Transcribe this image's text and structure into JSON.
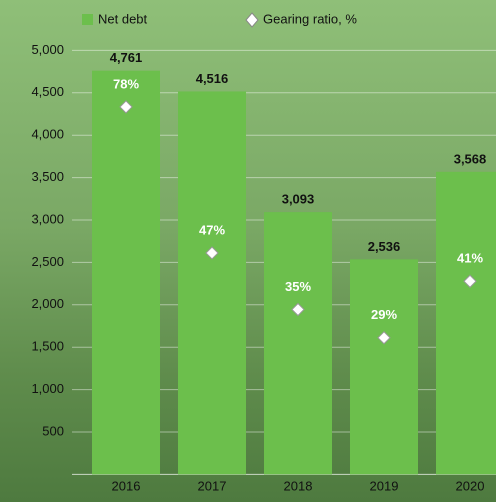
{
  "chart_data": {
    "type": "bar",
    "categories": [
      "2016",
      "2017",
      "2018",
      "2019",
      "2020"
    ],
    "series": [
      {
        "name": "Net debt",
        "color": "#6cbf4c",
        "values": [
          4761,
          4516,
          3093,
          2536,
          3568
        ],
        "value_labels": [
          "4,761",
          "4,516",
          "3,093",
          "2,536",
          "3,568"
        ]
      },
      {
        "name": "Gearing ratio, %",
        "color": "#ffffff",
        "axis": "y2",
        "values": [
          78,
          47,
          35,
          29,
          41
        ],
        "value_labels": [
          "78%",
          "47%",
          "35%",
          "29%",
          "41%"
        ]
      }
    ],
    "ylim": [
      0,
      5000
    ],
    "yticks": [
      500,
      {
        "value": 1000,
        "label": "1,000"
      },
      {
        "value": 1500,
        "label": "1,500"
      },
      {
        "value": 2000,
        "label": "2,000"
      },
      {
        "value": 2500,
        "label": "2,500"
      },
      {
        "value": 3000,
        "label": "3,000"
      },
      {
        "value": 3500,
        "label": "3,500"
      },
      {
        "value": 4000,
        "label": "4,000"
      },
      {
        "value": 4500,
        "label": "4,500"
      },
      {
        "value": 5000,
        "label": "5,000"
      }
    ],
    "y2lim": [
      0,
      90
    ],
    "grid": true
  }
}
